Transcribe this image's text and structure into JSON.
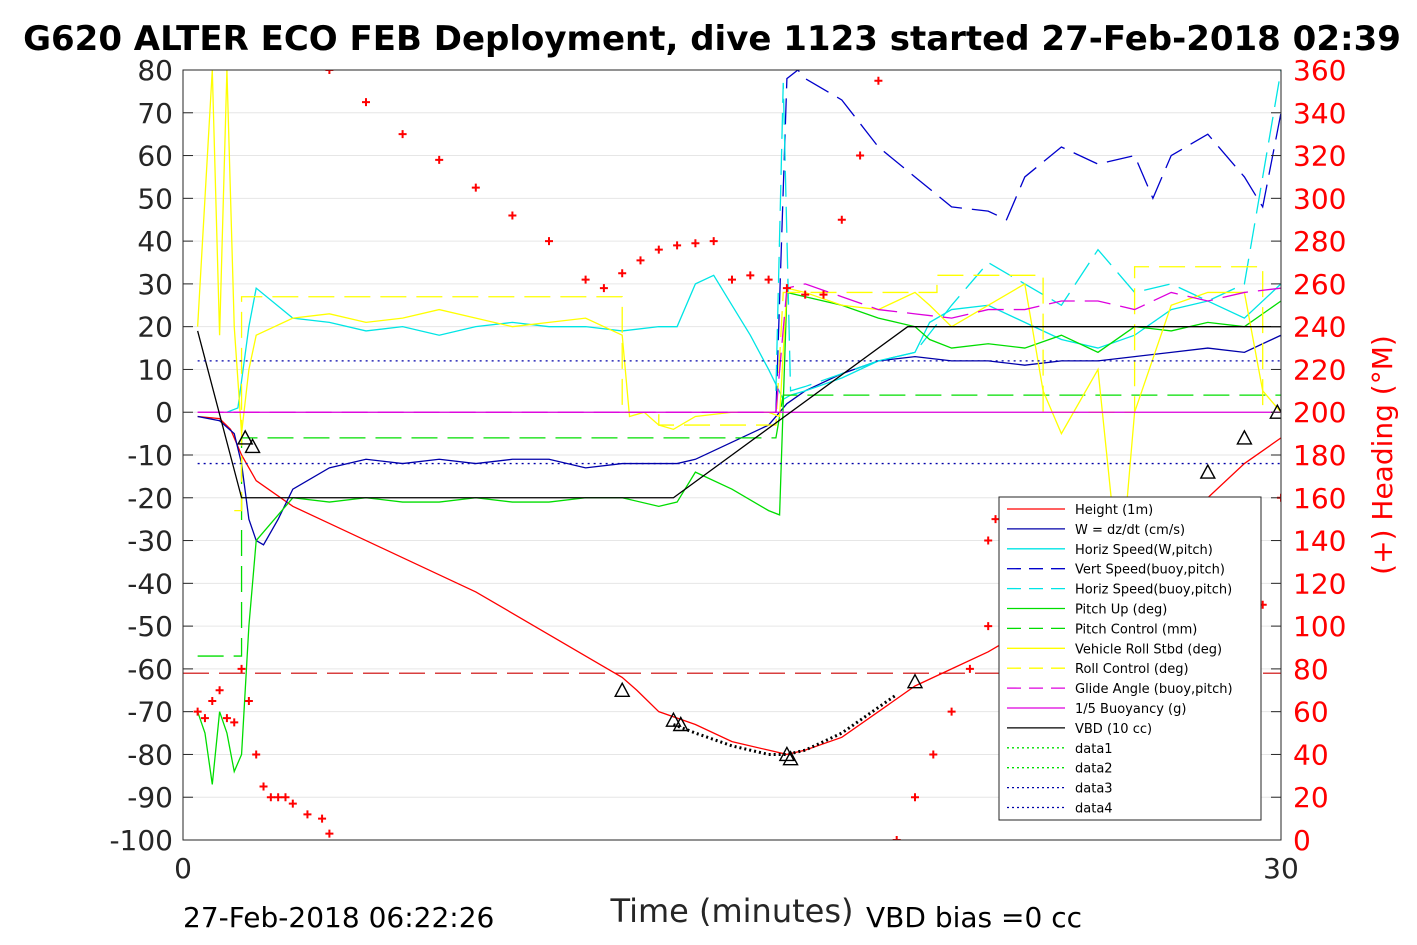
{
  "chart_data": {
    "type": "line",
    "title": "G620 ALTER ECO FEB Deployment, dive 1123 started 27-Feb-2018 02:39",
    "xlabel": "Time (minutes)",
    "ylabel_right": "(+) Heading (°M)",
    "footer_left": "27-Feb-2018 06:22:26",
    "footer_right": "VBD bias =0 cc",
    "xlim": [
      0,
      30
    ],
    "ylim": [
      -100,
      80
    ],
    "ylim_right": [
      0,
      360
    ],
    "x_ticks": [
      "0",
      "30"
    ],
    "y_ticks": [
      "80",
      "70",
      "60",
      "50",
      "40",
      "30",
      "20",
      "10",
      "0",
      "-10",
      "-20",
      "-30",
      "-40",
      "-50",
      "-60",
      "-70",
      "-80",
      "-90",
      "-100"
    ],
    "y_ticks_right": [
      "360",
      "340",
      "320",
      "300",
      "280",
      "260",
      "240",
      "220",
      "200",
      "180",
      "160",
      "140",
      "120",
      "100",
      "80",
      "60",
      "40",
      "20",
      "0"
    ],
    "grid": true,
    "legend_position": "bottom-right",
    "legend": [
      {
        "label": "Height (1m)",
        "color": "#ff0000",
        "dash": "solid"
      },
      {
        "label": "W = dz/dt (cm/s)",
        "color": "#0000aa",
        "dash": "solid"
      },
      {
        "label": "Horiz Speed(W,pitch)",
        "color": "#00e5e5",
        "dash": "solid"
      },
      {
        "label": "Vert Speed(buoy,pitch)",
        "color": "#0000cc",
        "dash": "dashed"
      },
      {
        "label": "Horiz Speed(buoy,pitch)",
        "color": "#00e5e5",
        "dash": "dashed"
      },
      {
        "label": "Pitch Up (deg)",
        "color": "#00dd00",
        "dash": "solid"
      },
      {
        "label": "Pitch Control (mm)",
        "color": "#00dd00",
        "dash": "dashed"
      },
      {
        "label": "Vehicle Roll Stbd (deg)",
        "color": "#ffff00",
        "dash": "solid"
      },
      {
        "label": "Roll Control (deg)",
        "color": "#ffff00",
        "dash": "dashed"
      },
      {
        "label": "Glide Angle (buoy,pitch)",
        "color": "#dd00dd",
        "dash": "dashed"
      },
      {
        "label": "1/5 Buoyancy (g)",
        "color": "#dd00dd",
        "dash": "solid"
      },
      {
        "label": "VBD (10 cc)",
        "color": "#000000",
        "dash": "solid"
      },
      {
        "label": "data1",
        "color": "#00dd00",
        "dash": "dotted"
      },
      {
        "label": "data2",
        "color": "#00dd00",
        "dash": "dotted"
      },
      {
        "label": "data3",
        "color": "#0000aa",
        "dash": "dotted"
      },
      {
        "label": "data4",
        "color": "#0000aa",
        "dash": "dotted"
      }
    ],
    "series": [
      {
        "name": "Height (1m)",
        "color": "#ff0000",
        "dash": "solid",
        "x": [
          0.4,
          1.0,
          1.3,
          1.6,
          2.0,
          3.0,
          4.0,
          5.0,
          6.0,
          7.0,
          8.0,
          9.0,
          10.0,
          11.0,
          12.0,
          12.4,
          13.0,
          14.0,
          15.0,
          16.0,
          16.5,
          17.0,
          18.0,
          19.0,
          20.0,
          21.0,
          22.0,
          23.0,
          24.0,
          25.0,
          26.0,
          27.0,
          28.0,
          29.0,
          30.0
        ],
        "y": [
          -1,
          -1.5,
          -4,
          -10,
          -16,
          -22,
          -26,
          -30,
          -34,
          -38,
          -42,
          -47,
          -52,
          -57,
          -62,
          -65,
          -70,
          -73,
          -77,
          -79,
          -80,
          -79,
          -76,
          -70,
          -64,
          -60,
          -56,
          -51,
          -46,
          -40,
          -33,
          -26,
          -20,
          -12,
          -6
        ]
      },
      {
        "name": "W = dz/dt (cm/s)",
        "color": "#0000aa",
        "dash": "solid",
        "x": [
          0.4,
          1.0,
          1.4,
          1.6,
          1.8,
          2.0,
          2.2,
          2.6,
          3.0,
          4.0,
          5.0,
          6.0,
          7.0,
          8.0,
          9.0,
          10.0,
          11.0,
          12.0,
          13.0,
          13.5,
          14.0,
          15.0,
          16.0,
          16.5,
          17.0,
          18.0,
          19.0,
          20.0,
          21.0,
          22.0,
          23.0,
          24.0,
          25.0,
          26.0,
          27.0,
          28.0,
          29.0,
          30.0,
          30.1
        ],
        "y": [
          -1,
          -2,
          -5,
          -12,
          -25,
          -30,
          -31,
          -25,
          -18,
          -13,
          -11,
          -12,
          -11,
          -12,
          -11,
          -11,
          -13,
          -12,
          -12,
          -12,
          -11,
          -7,
          -3,
          2,
          5,
          9,
          12,
          13,
          12,
          12,
          11,
          12,
          12,
          13,
          14,
          15,
          14,
          18,
          2
        ]
      },
      {
        "name": "Horiz Speed(W,pitch)",
        "color": "#00e5e5",
        "dash": "solid",
        "x": [
          1.2,
          1.5,
          1.8,
          2.0,
          3.0,
          4.0,
          5.0,
          6.0,
          7.0,
          8.0,
          9.0,
          10.0,
          11.0,
          12.0,
          13.0,
          13.5,
          14.0,
          14.5,
          15.0,
          15.5,
          16.0,
          16.4,
          16.6,
          17.0,
          18.0,
          19.0,
          20.0,
          20.4,
          21.0,
          22.0,
          23.0,
          24.0,
          25.0,
          26.0,
          27.0,
          28.0,
          29.0,
          30.0
        ],
        "y": [
          0,
          1,
          20,
          29,
          22,
          21,
          19,
          20,
          18,
          20,
          21,
          20,
          20,
          19,
          20,
          20,
          30,
          32,
          25,
          18,
          10,
          3,
          4,
          5,
          8,
          12,
          14,
          21,
          24,
          25,
          21,
          17,
          15,
          18,
          24,
          26,
          22,
          30
        ]
      },
      {
        "name": "Vert Speed(buoy,pitch)",
        "color": "#0000cc",
        "dash": "dashed",
        "x": [
          16.2,
          16.5,
          16.8,
          17.0,
          18.0,
          19.0,
          20.0,
          21.0,
          22.0,
          22.5,
          23.0,
          24.0,
          25.0,
          26.0,
          26.5,
          27.0,
          28.0,
          29.0,
          29.5,
          30.0,
          30.1
        ],
        "y": [
          0,
          78,
          80,
          78,
          73,
          62,
          55,
          48,
          47,
          45,
          55,
          62,
          58,
          60,
          50,
          60,
          65,
          55,
          48,
          70,
          0
        ]
      },
      {
        "name": "Horiz Speed(buoy,pitch)",
        "color": "#00e5e5",
        "dash": "dashed",
        "x": [
          16.2,
          16.4,
          16.6,
          17.0,
          18.0,
          19.0,
          20.0,
          21.0,
          22.0,
          23.0,
          24.0,
          25.0,
          26.0,
          27.0,
          28.0,
          29.0,
          30.0
        ],
        "y": [
          5,
          77,
          5,
          6,
          9,
          12,
          14,
          25,
          35,
          30,
          25,
          38,
          28,
          30,
          26,
          30,
          80
        ]
      },
      {
        "name": "Pitch Up (deg)",
        "color": "#00dd00",
        "dash": "solid",
        "x": [
          0.4,
          0.6,
          0.8,
          1.0,
          1.2,
          1.4,
          1.6,
          1.8,
          2.0,
          2.5,
          3.0,
          4.0,
          5.0,
          6.0,
          7.0,
          8.0,
          9.0,
          10.0,
          11.0,
          12.0,
          13.0,
          13.5,
          14.0,
          15.0,
          16.0,
          16.3,
          16.5,
          17.0,
          18.0,
          19.0,
          20.0,
          20.4,
          21.0,
          22.0,
          23.0,
          24.0,
          25.0,
          26.0,
          27.0,
          28.0,
          29.0,
          30.0
        ],
        "y": [
          -70,
          -75,
          -87,
          -70,
          -75,
          -84,
          -80,
          -50,
          -30,
          -25,
          -20,
          -21,
          -20,
          -21,
          -21,
          -20,
          -21,
          -21,
          -20,
          -20,
          -22,
          -21,
          -14,
          -18,
          -23,
          -24,
          28,
          27,
          25,
          22,
          20,
          17,
          15,
          16,
          15,
          18,
          14,
          20,
          19,
          21,
          20,
          26
        ]
      },
      {
        "name": "Pitch Control (mm)",
        "color": "#00dd00",
        "dash": "dashed",
        "x": [
          0.4,
          1.6,
          1.6,
          16.2,
          16.4,
          30.0
        ],
        "y": [
          -57,
          -57,
          -6,
          -6,
          4,
          4
        ]
      },
      {
        "name": "Vehicle Roll Stbd (deg)",
        "color": "#ffff00",
        "dash": "solid",
        "x": [
          0.4,
          0.8,
          1.0,
          1.2,
          1.4,
          1.6,
          1.8,
          2.0,
          3.0,
          4.0,
          5.0,
          6.0,
          7.0,
          8.0,
          9.0,
          10.0,
          11.0,
          12.0,
          12.2,
          12.6,
          13.0,
          13.4,
          14.0,
          15.0,
          16.0,
          16.3,
          16.5,
          17.0,
          18.0,
          19.0,
          20.0,
          20.4,
          21.0,
          22.0,
          23.0,
          23.5,
          24.0,
          25.0,
          25.6,
          26.0,
          27.0,
          28.0,
          29.0,
          29.5,
          30.0
        ],
        "y": [
          20,
          80,
          18,
          80,
          20,
          -5,
          10,
          18,
          22,
          23,
          21,
          22,
          24,
          22,
          20,
          21,
          22,
          18,
          -1,
          0,
          -3,
          -4,
          -1,
          0,
          0,
          -1,
          29,
          28,
          25,
          24,
          28,
          25,
          20,
          25,
          30,
          5,
          -5,
          10,
          -40,
          0,
          25,
          28,
          28,
          5,
          0
        ]
      },
      {
        "name": "Roll Control (deg)",
        "color": "#ffff00",
        "dash": "dashed",
        "x": [
          1.4,
          1.6,
          1.6,
          12.0,
          12.0,
          13.0,
          13.0,
          16.2,
          16.4,
          20.6,
          20.6,
          23.5,
          23.5,
          26.0,
          26.0,
          29.5,
          29.5
        ],
        "y": [
          -23,
          -23,
          27,
          27,
          0,
          0,
          -3,
          -3,
          28,
          28,
          32,
          32,
          0,
          0,
          34,
          34,
          0
        ]
      },
      {
        "name": "Glide Angle (buoy,pitch)",
        "color": "#dd00dd",
        "dash": "dashed",
        "x": [
          0.4,
          16.2,
          16.5,
          17.0,
          18.0,
          19.0,
          20.0,
          21.0,
          22.0,
          23.0,
          24.0,
          25.0,
          26.0,
          27.0,
          28.0,
          29.0,
          30.0
        ],
        "y": [
          0,
          0,
          29,
          30,
          27,
          24,
          23,
          22,
          24,
          24,
          26,
          26,
          24,
          28,
          26,
          28,
          29
        ]
      },
      {
        "name": "1/5 Buoyancy (g)",
        "color": "#dd00dd",
        "dash": "solid",
        "x": [
          0.4,
          30.0
        ],
        "y": [
          0,
          0
        ]
      },
      {
        "name": "VBD (10 cc)",
        "color": "#000000",
        "dash": "solid",
        "x": [
          0.4,
          1.6,
          13.4,
          19.8,
          30.0
        ],
        "y": [
          19,
          -20,
          -20,
          20,
          20
        ]
      },
      {
        "name": "data1",
        "color": "#00dd00",
        "dash": "dotted",
        "x": [],
        "y": []
      },
      {
        "name": "data2",
        "color": "#00dd00",
        "dash": "dotted",
        "x": [],
        "y": []
      },
      {
        "name": "data3",
        "color": "#0000aa",
        "dash": "dotted",
        "x": [
          0.4,
          30.0
        ],
        "y": [
          12,
          12
        ]
      },
      {
        "name": "data4",
        "color": "#0000aa",
        "dash": "dotted",
        "x": [
          0.4,
          30.0
        ],
        "y": [
          -12,
          -12
        ]
      }
    ],
    "reference_lines": [
      {
        "y": -61,
        "color": "#cc0000",
        "dash": "dashed"
      }
    ],
    "dotted_profile": {
      "color": "#000000",
      "x": [
        13.4,
        14.0,
        15.0,
        16.0,
        16.5,
        17.0,
        18.0,
        19.5
      ],
      "y": [
        -73,
        -75,
        -78,
        -80,
        -80,
        -79,
        -75,
        -66
      ]
    },
    "markers": {
      "color": "#000000",
      "x": [
        1.7,
        1.9,
        12.0,
        13.4,
        13.6,
        16.5,
        16.6,
        20.0,
        23.5,
        25.5,
        26.4,
        28.0,
        29.0,
        29.9
      ],
      "y": [
        -6,
        -8,
        -65,
        -72,
        -73,
        -80,
        -81,
        -63,
        -45,
        -33,
        -27,
        -14,
        -6,
        0
      ]
    },
    "heading": {
      "name": "Heading",
      "color": "#ff0000",
      "axis": "right",
      "x": [
        0.4,
        0.6,
        0.8,
        1.0,
        1.2,
        1.4,
        1.6,
        1.8,
        2.0,
        2.2,
        2.4,
        2.6,
        2.8,
        3.0,
        3.4,
        3.8,
        4.0,
        4.0,
        5.0,
        6.0,
        7.0,
        8.0,
        9.0,
        10.0,
        11.0,
        11.5,
        12.0,
        12.5,
        13.0,
        13.5,
        14.0,
        14.5,
        15.0,
        15.5,
        16.0,
        16.5,
        17.0,
        17.5,
        18.0,
        18.5,
        19.0,
        19.5,
        20.0,
        20.5,
        21.0,
        21.5,
        22.0,
        22.0,
        22.2,
        22.4,
        22.6,
        23.0,
        23.5,
        24.0,
        24.3,
        24.6,
        24.9,
        25.2,
        25.5,
        25.8,
        26.0,
        26.3,
        26.6,
        27.0,
        27.3,
        27.6,
        28.0,
        28.5,
        29.0,
        29.5,
        30.0
      ],
      "y": [
        60,
        57,
        65,
        70,
        57,
        55,
        80,
        65,
        40,
        25,
        20,
        20,
        20,
        17,
        12,
        10,
        3,
        360,
        345,
        330,
        318,
        305,
        292,
        280,
        262,
        258,
        265,
        271,
        276,
        278,
        279,
        280,
        262,
        264,
        262,
        258,
        255,
        255,
        290,
        320,
        355,
        0,
        20,
        40,
        60,
        80,
        100,
        140,
        150,
        155,
        150,
        140,
        130,
        120,
        100,
        90,
        80,
        70,
        60,
        50,
        45,
        40,
        30,
        25,
        20,
        20,
        50,
        70,
        90,
        110,
        160
      ]
    }
  }
}
